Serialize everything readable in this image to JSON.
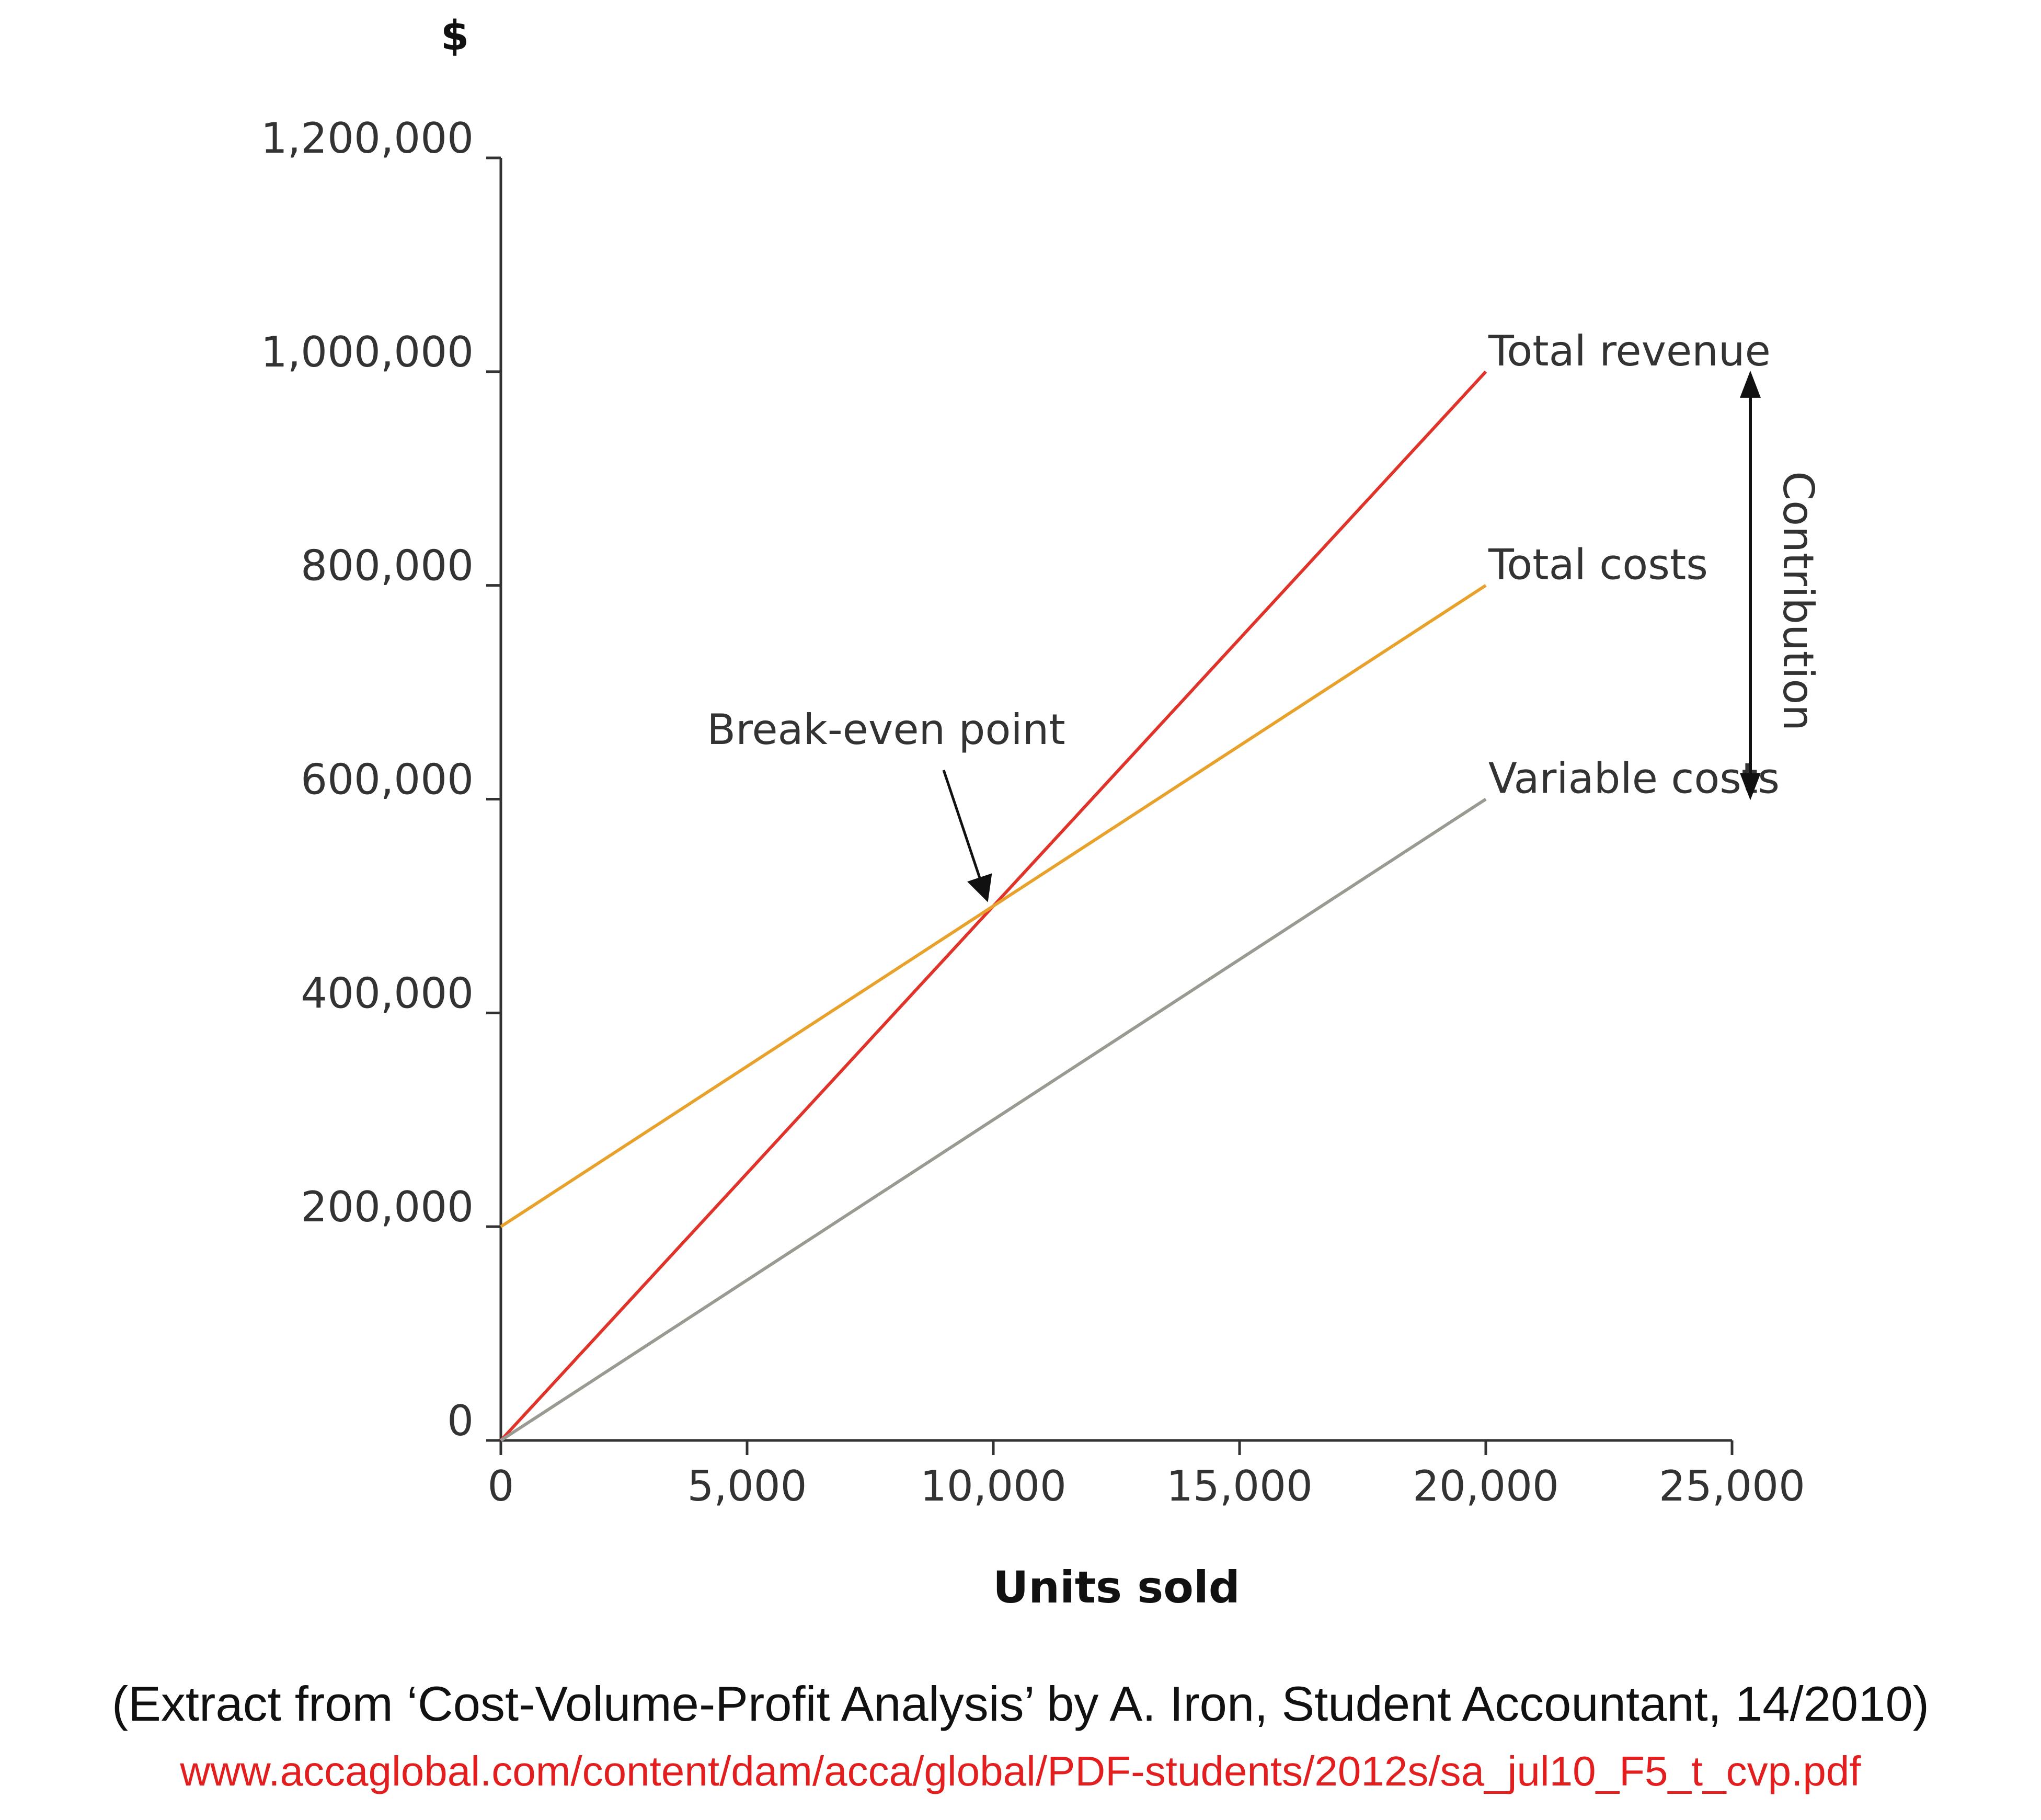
{
  "chart_data": {
    "type": "line",
    "title": "",
    "ylabel": "$",
    "xlabel": "Units sold",
    "xlim": [
      0,
      25000
    ],
    "ylim": [
      0,
      1200000
    ],
    "x_ticks": [
      0,
      5000,
      10000,
      15000,
      20000,
      25000
    ],
    "x_tick_labels": [
      "0",
      "5,000",
      "10,000",
      "15,000",
      "20,000",
      "25,000"
    ],
    "y_ticks": [
      0,
      200000,
      400000,
      600000,
      800000,
      1000000,
      1200000
    ],
    "y_tick_labels": [
      "0",
      "200,000",
      "400,000",
      "600,000",
      "800,000",
      "1,000,000",
      "1,200,000"
    ],
    "grid": false,
    "legend": "none",
    "series": [
      {
        "name": "Total revenue",
        "x": [
          0,
          20000
        ],
        "y": [
          0,
          1000000
        ],
        "color": "#e0342b"
      },
      {
        "name": "Total costs",
        "x": [
          0,
          20000
        ],
        "y": [
          200000,
          800000
        ],
        "color": "#e8a22c"
      },
      {
        "name": "Variable costs",
        "x": [
          0,
          20000
        ],
        "y": [
          0,
          600000
        ],
        "color": "#9a9a92"
      }
    ],
    "annotations": [
      {
        "text": "Break-even point",
        "x": 10000,
        "y": 500000,
        "style": "arrow"
      },
      {
        "text": "Contribution",
        "range_y": [
          600000,
          1000000
        ],
        "style": "double-arrow"
      }
    ]
  },
  "caption": {
    "text": "(Extract from ‘Cost-Volume-Profit Analysis’ by A. Iron, Student Accountant, 14/2010)",
    "url": "www.accaglobal.com/content/dam/acca/global/PDF-students/2012s/sa_jul10_F5_t_cvp.pdf"
  },
  "colors": {
    "axis": "#333333",
    "text": "#333333",
    "caption": "#111111",
    "link": "#e31e1e"
  }
}
